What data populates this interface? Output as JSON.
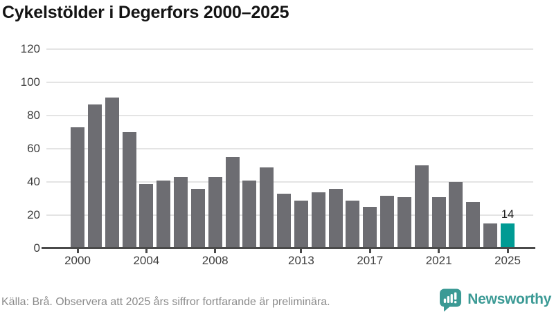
{
  "title": "Cykelstölder i Degerfors 2000–2025",
  "footer": {
    "source_note": "Källa: Brå. Observera att 2025 års siffror fortfarande är preliminära.",
    "brand": "Newsworthy"
  },
  "chart_data": {
    "type": "bar",
    "title": "Cykelstölder i Degerfors 2000–2025",
    "categories": [
      2000,
      2001,
      2002,
      2003,
      2004,
      2005,
      2006,
      2007,
      2008,
      2009,
      2010,
      2011,
      2012,
      2013,
      2014,
      2015,
      2016,
      2017,
      2018,
      2019,
      2020,
      2021,
      2022,
      2023,
      2024,
      2025
    ],
    "values": [
      72,
      86,
      90,
      69,
      38,
      40,
      42,
      35,
      42,
      54,
      40,
      48,
      32,
      28,
      33,
      35,
      28,
      24,
      31,
      30,
      49,
      30,
      39,
      27,
      14,
      14
    ],
    "highlight_year": 2025,
    "highlight_value_label": "14",
    "bar_color": "#6d6d72",
    "highlight_color": "#009b94",
    "ylim": [
      0,
      120
    ],
    "yticks": [
      0,
      20,
      40,
      60,
      80,
      100,
      120
    ],
    "xtick_years": [
      2000,
      2004,
      2008,
      2013,
      2017,
      2021,
      2025
    ],
    "grid": "horizontal",
    "legend": "none",
    "xlabel": "",
    "ylabel": ""
  },
  "colors": {
    "axis": "#4a4a4a",
    "gridline": "#e4e4e4",
    "tick_label": "#3e3e3e",
    "title_text": "#141414",
    "source_text": "#8b8b8b",
    "brand_teal": "#3b9a95"
  }
}
